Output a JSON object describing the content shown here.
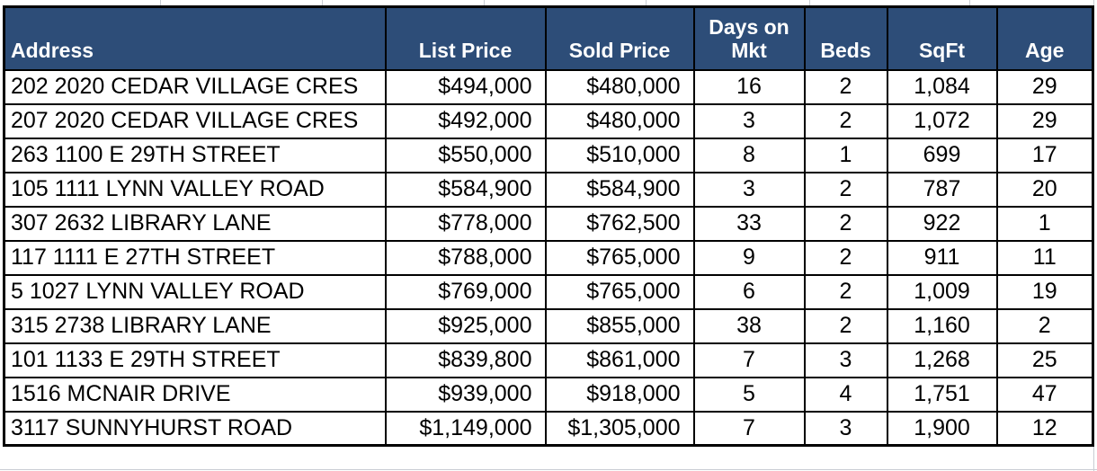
{
  "colors": {
    "header_bg": "#2d4d78",
    "header_text": "#ffffff",
    "cell_bg": "#ffffff",
    "cell_text": "#000000",
    "table_border": "#000000",
    "sheet_gridline": "#c9cdd3"
  },
  "table": {
    "columns": [
      {
        "key": "address",
        "label": "Address",
        "header_align": "left",
        "cell_align": "left"
      },
      {
        "key": "list_price",
        "label": "List Price",
        "header_align": "center",
        "cell_align": "right"
      },
      {
        "key": "sold_price",
        "label": "Sold Price",
        "header_align": "center",
        "cell_align": "right"
      },
      {
        "key": "days_on_mkt",
        "label": "Days on Mkt",
        "header_align": "center",
        "cell_align": "center"
      },
      {
        "key": "beds",
        "label": "Beds",
        "header_align": "center",
        "cell_align": "center"
      },
      {
        "key": "sqft",
        "label": "SqFt",
        "header_align": "center",
        "cell_align": "center"
      },
      {
        "key": "age",
        "label": "Age",
        "header_align": "center",
        "cell_align": "center"
      }
    ],
    "rows": [
      [
        "202 2020 CEDAR VILLAGE CRES",
        "$494,000",
        "$480,000",
        "16",
        "2",
        "1,084",
        "29"
      ],
      [
        "207 2020 CEDAR VILLAGE CRES",
        "$492,000",
        "$480,000",
        "3",
        "2",
        "1,072",
        "29"
      ],
      [
        "263 1100 E 29TH STREET",
        "$550,000",
        "$510,000",
        "8",
        "1",
        "699",
        "17"
      ],
      [
        "105 1111 LYNN VALLEY ROAD",
        "$584,900",
        "$584,900",
        "3",
        "2",
        "787",
        "20"
      ],
      [
        "307 2632 LIBRARY LANE",
        "$778,000",
        "$762,500",
        "33",
        "2",
        "922",
        "1"
      ],
      [
        "117 1111 E 27TH STREET",
        "$788,000",
        "$765,000",
        "9",
        "2",
        "911",
        "11"
      ],
      [
        "5 1027 LYNN VALLEY ROAD",
        "$769,000",
        "$765,000",
        "6",
        "2",
        "1,009",
        "19"
      ],
      [
        "315 2738 LIBRARY LANE",
        "$925,000",
        "$855,000",
        "38",
        "2",
        "1,160",
        "2"
      ],
      [
        "101 1133 E 29TH STREET",
        "$839,800",
        "$861,000",
        "7",
        "3",
        "1,268",
        "25"
      ],
      [
        "1516 MCNAIR DRIVE",
        "$939,000",
        "$918,000",
        "5",
        "4",
        "1,751",
        "47"
      ],
      [
        "3117 SUNNYHURST ROAD",
        "$1,149,000",
        "$1,305,000",
        "7",
        "3",
        "1,900",
        "12"
      ]
    ]
  }
}
